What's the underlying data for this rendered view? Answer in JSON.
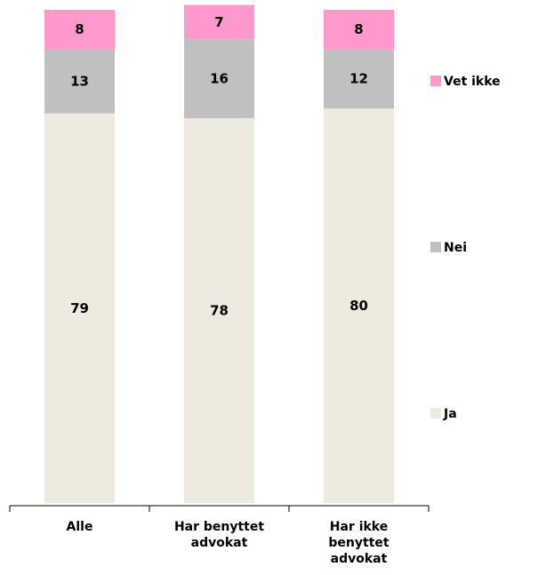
{
  "chart_data": {
    "type": "bar",
    "stacked": true,
    "percent": true,
    "categories": [
      [
        "Alle"
      ],
      [
        "Har benyttet",
        "advokat"
      ],
      [
        "Har ikke",
        "benyttet",
        "advokat"
      ]
    ],
    "series": [
      {
        "name": "Ja",
        "values": [
          79,
          78,
          80
        ],
        "color": "#EEEAE0"
      },
      {
        "name": "Nei",
        "values": [
          13,
          16,
          12
        ],
        "color": "#C0C0C0"
      },
      {
        "name": "Vet ikke",
        "values": [
          8,
          7,
          8
        ],
        "color": "#FF99CC"
      }
    ],
    "ylim": [
      0,
      100
    ],
    "grid": false,
    "legend_position": "right"
  }
}
